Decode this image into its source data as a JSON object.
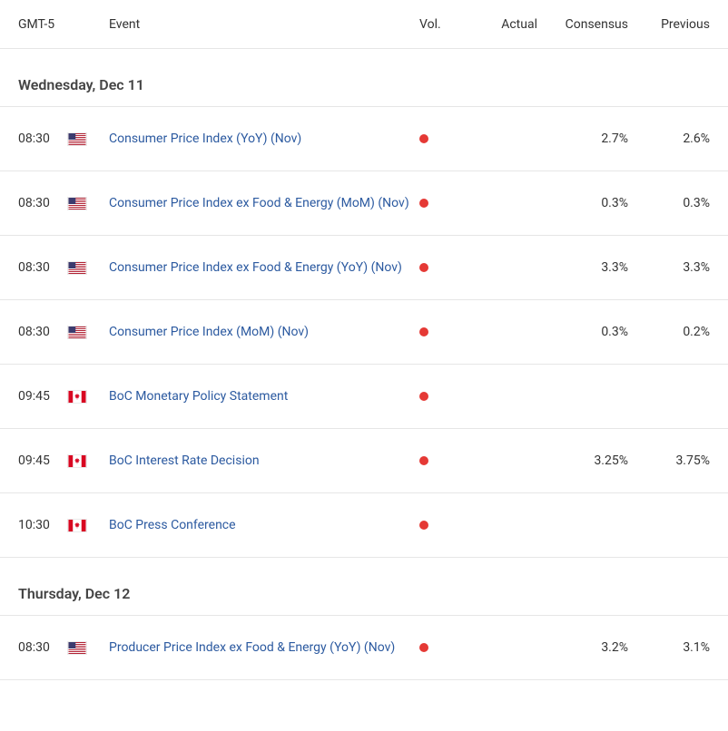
{
  "columns": {
    "time": "GMT-5",
    "event": "Event",
    "vol": "Vol.",
    "actual": "Actual",
    "consensus": "Consensus",
    "previous": "Previous"
  },
  "vol_color": "#e53935",
  "link_color": "#2c5aa0",
  "flags": {
    "us": "US",
    "ca": "CA"
  },
  "days": [
    {
      "label": "Wednesday, Dec 11",
      "events": [
        {
          "time": "08:30",
          "flag": "us",
          "event": "Consumer Price Index (YoY) (Nov)",
          "actual": "",
          "consensus": "2.7%",
          "previous": "2.6%"
        },
        {
          "time": "08:30",
          "flag": "us",
          "event": "Consumer Price Index ex Food & Energy (MoM) (Nov)",
          "actual": "",
          "consensus": "0.3%",
          "previous": "0.3%"
        },
        {
          "time": "08:30",
          "flag": "us",
          "event": "Consumer Price Index ex Food & Energy (YoY) (Nov)",
          "actual": "",
          "consensus": "3.3%",
          "previous": "3.3%"
        },
        {
          "time": "08:30",
          "flag": "us",
          "event": "Consumer Price Index (MoM) (Nov)",
          "actual": "",
          "consensus": "0.3%",
          "previous": "0.2%"
        },
        {
          "time": "09:45",
          "flag": "ca",
          "event": "BoC Monetary Policy Statement",
          "actual": "",
          "consensus": "",
          "previous": ""
        },
        {
          "time": "09:45",
          "flag": "ca",
          "event": "BoC Interest Rate Decision",
          "actual": "",
          "consensus": "3.25%",
          "previous": "3.75%"
        },
        {
          "time": "10:30",
          "flag": "ca",
          "event": "BoC Press Conference",
          "actual": "",
          "consensus": "",
          "previous": ""
        }
      ]
    },
    {
      "label": "Thursday, Dec 12",
      "events": [
        {
          "time": "08:30",
          "flag": "us",
          "event": "Producer Price Index ex Food & Energy (YoY) (Nov)",
          "actual": "",
          "consensus": "3.2%",
          "previous": "3.1%"
        }
      ]
    }
  ]
}
